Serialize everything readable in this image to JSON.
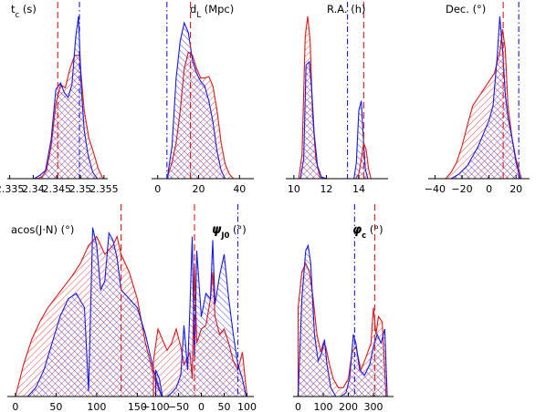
{
  "figure": {
    "colors": {
      "red": "#e01818",
      "blue": "#1818e8",
      "purple": "#8a2c8a"
    }
  },
  "chart_data": [
    {
      "type": "area",
      "title": "t_c (s)",
      "title_parts": [
        {
          "t": "t",
          "s": "n"
        },
        {
          "t": "c",
          "s": "sub"
        },
        {
          "t": " (s)",
          "s": "n"
        }
      ],
      "xlim": [
        2.3345,
        2.3558
      ],
      "ticks": [
        2.335,
        2.34,
        2.345,
        2.35,
        2.355
      ],
      "tick_labels": [
        "2.335",
        "2.34",
        "2.345",
        "2.35",
        "2.355"
      ],
      "red_line": 2.3452,
      "blue_line": 2.3498,
      "series": [
        {
          "color": "red",
          "x": [
            2.3408,
            2.3418,
            2.3428,
            2.3438,
            2.3448,
            2.3458,
            2.3468,
            2.3478,
            2.3488,
            2.3498,
            2.3508,
            2.3518,
            2.3528,
            2.3538,
            2.3548
          ],
          "y": [
            0.0,
            0.01,
            0.05,
            0.2,
            0.46,
            0.58,
            0.56,
            0.68,
            0.76,
            0.76,
            0.42,
            0.25,
            0.16,
            0.06,
            0.0
          ]
        },
        {
          "color": "blue",
          "x": [
            2.3402,
            2.3414,
            2.3426,
            2.3438,
            2.3448,
            2.3458,
            2.3466,
            2.3474,
            2.3482,
            2.349,
            2.3496,
            2.3502,
            2.3508,
            2.3516,
            2.3526,
            2.3536
          ],
          "y": [
            0.0,
            0.02,
            0.05,
            0.24,
            0.55,
            0.59,
            0.53,
            0.5,
            0.58,
            0.87,
            1.0,
            0.55,
            0.3,
            0.15,
            0.04,
            0.0
          ]
        }
      ]
    },
    {
      "type": "area",
      "title": "d_L (Mpc)",
      "title_parts": [
        {
          "t": "d",
          "s": "n"
        },
        {
          "t": "L",
          "s": "sub"
        },
        {
          "t": " (Mpc)",
          "s": "n"
        }
      ],
      "xlim": [
        -3,
        47
      ],
      "ticks": [
        0,
        20,
        40
      ],
      "tick_labels": [
        "0",
        "20",
        "40"
      ],
      "red_line": 16.0,
      "blue_line": 4.5,
      "series": [
        {
          "color": "red",
          "x": [
            5,
            7,
            9,
            11,
            13,
            15,
            17,
            19,
            21,
            23,
            25,
            27,
            29,
            31,
            33,
            35,
            37
          ],
          "y": [
            0.02,
            0.1,
            0.22,
            0.42,
            0.68,
            0.78,
            0.76,
            0.68,
            0.62,
            0.62,
            0.63,
            0.57,
            0.42,
            0.22,
            0.09,
            0.03,
            0.0
          ]
        },
        {
          "color": "blue",
          "x": [
            5,
            7,
            9,
            11,
            13,
            15,
            17,
            19,
            21,
            23,
            25,
            27,
            29,
            31,
            33
          ],
          "y": [
            0.03,
            0.2,
            0.62,
            0.85,
            0.96,
            0.9,
            0.73,
            0.65,
            0.6,
            0.57,
            0.48,
            0.35,
            0.17,
            0.05,
            0.0
          ]
        }
      ]
    },
    {
      "type": "area",
      "title": "R.A. (h)",
      "title_parts": [
        {
          "t": "R.A. (h)",
          "s": "n"
        }
      ],
      "xlim": [
        9.5,
        15.8
      ],
      "ticks": [
        10,
        12,
        14
      ],
      "tick_labels": [
        "10",
        "12",
        "14"
      ],
      "red_line": 14.3,
      "blue_line": 13.3,
      "series": [
        {
          "color": "red",
          "x": [
            10.3,
            10.5,
            10.7,
            10.85,
            11.0,
            11.15,
            11.35,
            11.6,
            12.0,
            13.8,
            14.0,
            14.15,
            14.3,
            14.45,
            14.6,
            14.75
          ],
          "y": [
            0.0,
            0.15,
            0.88,
            1.0,
            0.85,
            0.4,
            0.12,
            0.01,
            0.0,
            0.0,
            0.03,
            0.12,
            0.22,
            0.18,
            0.06,
            0.0
          ]
        },
        {
          "color": "blue",
          "x": [
            10.4,
            10.6,
            10.75,
            10.95,
            11.1,
            11.25,
            11.45,
            11.7,
            12.0,
            13.7,
            13.85,
            14.0,
            14.15,
            14.25,
            14.4,
            14.55
          ],
          "y": [
            0.0,
            0.12,
            0.7,
            0.72,
            0.55,
            0.28,
            0.08,
            0.01,
            0.0,
            0.0,
            0.1,
            0.42,
            0.48,
            0.3,
            0.06,
            0.0
          ]
        }
      ]
    },
    {
      "type": "area",
      "title": "Dec. (°)",
      "title_parts": [
        {
          "t": "Dec. (°)",
          "s": "n"
        }
      ],
      "xlim": [
        -45,
        30
      ],
      "ticks": [
        -40,
        -20,
        0,
        20
      ],
      "tick_labels": [
        "−40",
        "−20",
        "0",
        "20"
      ],
      "red_line": 10.5,
      "blue_line": 22.0,
      "series": [
        {
          "color": "red",
          "x": [
            -32,
            -28,
            -24,
            -20,
            -16,
            -12,
            -8,
            -4,
            0,
            4,
            8,
            10,
            12,
            14,
            17,
            20,
            24
          ],
          "y": [
            0.0,
            0.04,
            0.1,
            0.2,
            0.33,
            0.45,
            0.5,
            0.55,
            0.6,
            0.65,
            0.78,
            0.92,
            0.8,
            0.45,
            0.25,
            0.12,
            0.0
          ]
        },
        {
          "color": "blue",
          "x": [
            -28,
            -22,
            -16,
            -12,
            -8,
            -4,
            0,
            3,
            6,
            8,
            10,
            12,
            14,
            17,
            20,
            23
          ],
          "y": [
            0.0,
            0.03,
            0.08,
            0.14,
            0.2,
            0.28,
            0.36,
            0.45,
            0.75,
            1.0,
            0.8,
            0.52,
            0.38,
            0.25,
            0.1,
            0.0
          ]
        }
      ]
    },
    {
      "type": "area",
      "title": "acos(J·N) (°)",
      "title_parts": [
        {
          "t": "acos(J·N) (°)",
          "s": "n"
        }
      ],
      "xlim": [
        -10,
        190
      ],
      "ticks": [
        0,
        50,
        100,
        150
      ],
      "tick_labels": [
        "0",
        "50",
        "100",
        "150"
      ],
      "red_line": 130.0,
      "blue_line": null,
      "series": [
        {
          "color": "red",
          "x": [
            0,
            10,
            20,
            30,
            40,
            50,
            60,
            70,
            80,
            90,
            100,
            110,
            120,
            125,
            130,
            140,
            150,
            160,
            170,
            180
          ],
          "y": [
            0.0,
            0.18,
            0.32,
            0.42,
            0.5,
            0.56,
            0.62,
            0.68,
            0.75,
            0.85,
            0.9,
            0.8,
            0.85,
            0.9,
            0.8,
            0.7,
            0.55,
            0.3,
            0.12,
            0.0
          ]
        },
        {
          "color": "blue",
          "x": [
            15,
            25,
            35,
            45,
            55,
            65,
            75,
            85,
            90,
            95,
            100,
            105,
            110,
            115,
            120,
            125,
            130,
            140,
            150,
            160,
            170,
            180
          ],
          "y": [
            0.0,
            0.05,
            0.15,
            0.3,
            0.45,
            0.55,
            0.58,
            0.5,
            0.03,
            0.95,
            0.85,
            0.6,
            0.65,
            0.92,
            0.88,
            0.78,
            0.6,
            0.55,
            0.5,
            0.35,
            0.15,
            0.0
          ]
        }
      ]
    },
    {
      "type": "area",
      "title": "ψ_J0 (°)",
      "title_parts": [
        {
          "t": "ψ",
          "s": "bi"
        },
        {
          "t": "J0",
          "s": "subb"
        },
        {
          "t": " (°)",
          "s": "n"
        }
      ],
      "xlim": [
        -115,
        115
      ],
      "ticks": [
        -100,
        -50,
        0,
        50,
        100
      ],
      "tick_labels": [
        "−100",
        "−50",
        "0",
        "50",
        "100"
      ],
      "red_line": -15.0,
      "blue_line": 80.0,
      "series": [
        {
          "color": "red",
          "x": [
            -105,
            -95,
            -85,
            -75,
            -65,
            -55,
            -45,
            -38,
            -30,
            -25,
            -20,
            -15,
            -10,
            0,
            10,
            20,
            25,
            30,
            40,
            50,
            60,
            70,
            80,
            90,
            100
          ],
          "y": [
            0.2,
            0.38,
            0.32,
            0.26,
            0.3,
            0.38,
            0.28,
            0.18,
            0.22,
            0.25,
            0.1,
            0.75,
            0.3,
            0.38,
            0.4,
            0.55,
            0.7,
            0.45,
            0.35,
            0.38,
            0.3,
            0.2,
            0.15,
            0.25,
            0.0
          ]
        },
        {
          "color": "blue",
          "x": [
            -100,
            -92,
            -85,
            -75,
            -65,
            -55,
            -45,
            -38,
            -30,
            -25,
            -20,
            -15,
            -10,
            0,
            10,
            20,
            25,
            30,
            40,
            50,
            60,
            70,
            80,
            90,
            98
          ],
          "y": [
            0.15,
            0.1,
            0.0,
            0.0,
            0.02,
            0.05,
            0.12,
            0.4,
            0.15,
            0.5,
            0.9,
            0.2,
            0.82,
            0.45,
            0.58,
            0.55,
            0.88,
            0.52,
            0.68,
            0.8,
            0.55,
            0.35,
            0.18,
            0.1,
            0.0
          ]
        }
      ]
    },
    {
      "type": "area",
      "title": "φ_c (°)",
      "title_parts": [
        {
          "t": "φ",
          "s": "bi"
        },
        {
          "t": "c",
          "s": "subb"
        },
        {
          "t": " (°)",
          "s": "n"
        }
      ],
      "xlim": [
        -20,
        380
      ],
      "ticks": [
        0,
        100,
        200,
        300
      ],
      "tick_labels": [
        "0",
        "100",
        "200",
        "300"
      ],
      "red_line": 305.0,
      "blue_line": 225.0,
      "series": [
        {
          "color": "red",
          "x": [
            0,
            15,
            30,
            45,
            60,
            75,
            90,
            100,
            110,
            125,
            140,
            160,
            180,
            200,
            215,
            230,
            250,
            270,
            290,
            300,
            310,
            320,
            335,
            350
          ],
          "y": [
            0.5,
            0.7,
            0.75,
            0.7,
            0.55,
            0.35,
            0.25,
            0.3,
            0.28,
            0.18,
            0.1,
            0.05,
            0.05,
            0.1,
            0.25,
            0.28,
            0.15,
            0.22,
            0.3,
            0.5,
            0.35,
            0.45,
            0.42,
            0.0
          ]
        },
        {
          "color": "blue",
          "x": [
            0,
            15,
            30,
            40,
            50,
            65,
            80,
            95,
            105,
            115,
            130,
            150,
            170,
            190,
            205,
            220,
            230,
            245,
            265,
            285,
            300,
            315,
            330,
            345,
            355
          ],
          "y": [
            0.0,
            0.55,
            0.82,
            0.85,
            0.75,
            0.35,
            0.2,
            0.25,
            0.32,
            0.18,
            0.05,
            0.0,
            0.0,
            0.02,
            0.1,
            0.35,
            0.3,
            0.15,
            0.12,
            0.18,
            0.28,
            0.35,
            0.3,
            0.38,
            0.0
          ]
        }
      ]
    }
  ]
}
